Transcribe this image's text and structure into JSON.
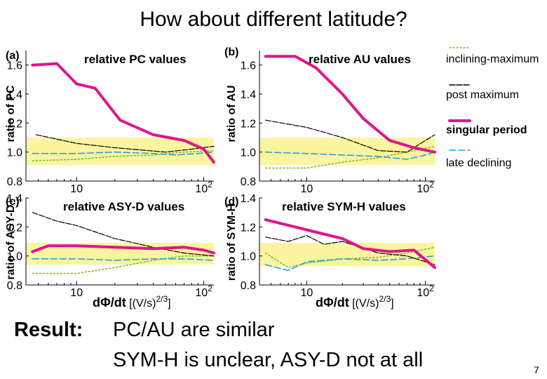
{
  "slide": {
    "title": "How about different latitude?",
    "result_label": "Result:",
    "result_line1": "PC/AU are similar",
    "result_line2": "SYM-H is unclear,  ASY-D not at all",
    "page_number": "7"
  },
  "legend": [
    {
      "label": "inclining-maximum",
      "color": "#7fb835",
      "style": "dotted"
    },
    {
      "label": "post maximum",
      "color": "#000000",
      "style": "solid"
    },
    {
      "label": "singular period",
      "color": "#e0148c",
      "style": "thick",
      "bold": true
    },
    {
      "label": "late declining",
      "color": "#2aa0d8",
      "style": "dashed"
    }
  ],
  "colors": {
    "band": "#fbf5a0",
    "post": "#000000",
    "singular": "#e0148c",
    "late": "#2aa0d8",
    "inclining": "#7fb835"
  },
  "x_axis_label": {
    "prefix": "d",
    "phi": "Φ",
    "main": "/dt",
    "unit": "[(V/s)",
    "exp": "2/3",
    "close": "]"
  },
  "chart_data": [
    {
      "type": "line",
      "panel": "(a)",
      "title": "relative PC values",
      "ylabel": "ratio of PC",
      "xscale": "log",
      "xlim": [
        4,
        120
      ],
      "ylim": [
        0.8,
        1.7
      ],
      "yticks": [
        "1.6",
        "1.4",
        "1.2",
        "1.0",
        "0.8"
      ],
      "ytick_values": [
        1.6,
        1.4,
        1.2,
        1.0,
        0.8
      ],
      "xticks": [
        {
          "base": "10",
          "exp": "",
          "value": 10
        },
        {
          "base": "10",
          "exp": "2",
          "value": 100
        }
      ],
      "band": [
        0.91,
        1.1
      ],
      "series": [
        {
          "name": "post maximum",
          "x": [
            4.8,
            10,
            20,
            50,
            80,
            120
          ],
          "y": [
            1.12,
            1.06,
            1.03,
            1.0,
            1.02,
            1.04
          ]
        },
        {
          "name": "singular period",
          "x": [
            4.5,
            7,
            10,
            14,
            22,
            40,
            70,
            100,
            120
          ],
          "y": [
            1.6,
            1.61,
            1.47,
            1.44,
            1.22,
            1.12,
            1.08,
            1.02,
            0.93
          ]
        },
        {
          "name": "late declining",
          "x": [
            4.5,
            10,
            20,
            40,
            60,
            90,
            120
          ],
          "y": [
            0.99,
            0.99,
            1.0,
            0.99,
            0.98,
            0.99,
            1.0
          ]
        },
        {
          "name": "inclining-maximum",
          "x": [
            4.5,
            10,
            20,
            40,
            70,
            120
          ],
          "y": [
            0.94,
            0.95,
            0.97,
            0.98,
            1.0,
            1.01
          ]
        }
      ]
    },
    {
      "type": "line",
      "panel": "(b)",
      "title": "relative AU values",
      "ylabel": "ratio of AU",
      "xscale": "log",
      "xlim": [
        4,
        120
      ],
      "ylim": [
        0.8,
        1.7
      ],
      "yticks": [
        "1.6",
        "1.4",
        "1.2",
        "1.0",
        "0.8"
      ],
      "ytick_values": [
        1.6,
        1.4,
        1.2,
        1.0,
        0.8
      ],
      "xticks": [
        {
          "base": "10",
          "exp": "",
          "value": 10
        },
        {
          "base": "10",
          "exp": "2",
          "value": 100
        }
      ],
      "band": [
        0.91,
        1.1
      ],
      "series": [
        {
          "name": "post maximum",
          "x": [
            4.5,
            10,
            20,
            40,
            70,
            100,
            120
          ],
          "y": [
            1.22,
            1.17,
            1.1,
            1.01,
            1.0,
            1.08,
            1.12
          ]
        },
        {
          "name": "singular period",
          "x": [
            4.5,
            8,
            12,
            20,
            30,
            50,
            80,
            120
          ],
          "y": [
            1.66,
            1.66,
            1.58,
            1.4,
            1.23,
            1.08,
            1.03,
            1.0
          ]
        },
        {
          "name": "late declining",
          "x": [
            4.5,
            10,
            20,
            40,
            70,
            100,
            120
          ],
          "y": [
            1.0,
            0.99,
            0.98,
            0.97,
            0.95,
            0.98,
            1.0
          ]
        },
        {
          "name": "inclining-maximum",
          "x": [
            4.5,
            10,
            20,
            40,
            70,
            120
          ],
          "y": [
            0.89,
            0.89,
            0.93,
            0.96,
            1.0,
            1.04
          ]
        }
      ]
    },
    {
      "type": "line",
      "panel": "(c)",
      "title": "relative ASY-D values",
      "ylabel": "ratio of ASY-D",
      "xscale": "log",
      "xlim": [
        4,
        120
      ],
      "ylim": [
        0.8,
        1.4
      ],
      "yticks": [
        "1.4",
        "1.2",
        "1.0",
        "0.8"
      ],
      "ytick_values": [
        1.4,
        1.2,
        1.0,
        0.8
      ],
      "xticks": [
        {
          "base": "10",
          "exp": "",
          "value": 10
        },
        {
          "base": "10",
          "exp": "2",
          "value": 100
        }
      ],
      "band": [
        0.94,
        1.09
      ],
      "series": [
        {
          "name": "post maximum",
          "x": [
            4.5,
            7,
            10,
            20,
            40,
            70,
            120
          ],
          "y": [
            1.3,
            1.24,
            1.21,
            1.12,
            1.06,
            1.02,
            1.0
          ]
        },
        {
          "name": "singular period",
          "x": [
            4.5,
            6,
            10,
            20,
            40,
            70,
            100,
            120
          ],
          "y": [
            1.03,
            1.07,
            1.07,
            1.06,
            1.05,
            1.06,
            1.04,
            1.02
          ]
        },
        {
          "name": "late declining",
          "x": [
            4.5,
            10,
            20,
            40,
            70,
            120
          ],
          "y": [
            0.98,
            0.98,
            0.97,
            0.98,
            0.98,
            0.97
          ]
        },
        {
          "name": "inclining-maximum",
          "x": [
            4.5,
            10,
            20,
            40,
            70,
            120
          ],
          "y": [
            0.88,
            0.88,
            0.92,
            0.97,
            1.0,
            1.0
          ]
        }
      ]
    },
    {
      "type": "line",
      "panel": "(d)",
      "title": "relative SYM-H values",
      "ylabel": "ratio of SYM-H",
      "xscale": "log",
      "xlim": [
        4,
        120
      ],
      "ylim": [
        0.8,
        1.4
      ],
      "yticks": [
        "1.4",
        "1.2",
        "1.0",
        "0.8"
      ],
      "ytick_values": [
        1.4,
        1.2,
        1.0,
        0.8
      ],
      "xticks": [
        {
          "base": "10",
          "exp": "",
          "value": 10
        },
        {
          "base": "10",
          "exp": "2",
          "value": 100
        }
      ],
      "band": [
        0.93,
        1.09
      ],
      "series": [
        {
          "name": "post maximum",
          "x": [
            4.5,
            7,
            10,
            14,
            20,
            40,
            70,
            120
          ],
          "y": [
            1.13,
            1.1,
            1.14,
            1.08,
            1.1,
            1.02,
            1.0,
            0.94
          ]
        },
        {
          "name": "singular period",
          "x": [
            4.5,
            10,
            20,
            30,
            50,
            80,
            120
          ],
          "y": [
            1.25,
            1.18,
            1.12,
            1.05,
            1.03,
            1.04,
            0.92
          ]
        },
        {
          "name": "late declining",
          "x": [
            4.5,
            7,
            10,
            20,
            40,
            70,
            120
          ],
          "y": [
            0.94,
            0.9,
            0.96,
            0.98,
            0.97,
            0.98,
            1.0
          ]
        },
        {
          "name": "inclining-maximum",
          "x": [
            4.5,
            7,
            10,
            20,
            40,
            70,
            120
          ],
          "y": [
            1.02,
            0.92,
            0.95,
            0.98,
            0.99,
            1.02,
            1.06
          ]
        }
      ]
    }
  ]
}
